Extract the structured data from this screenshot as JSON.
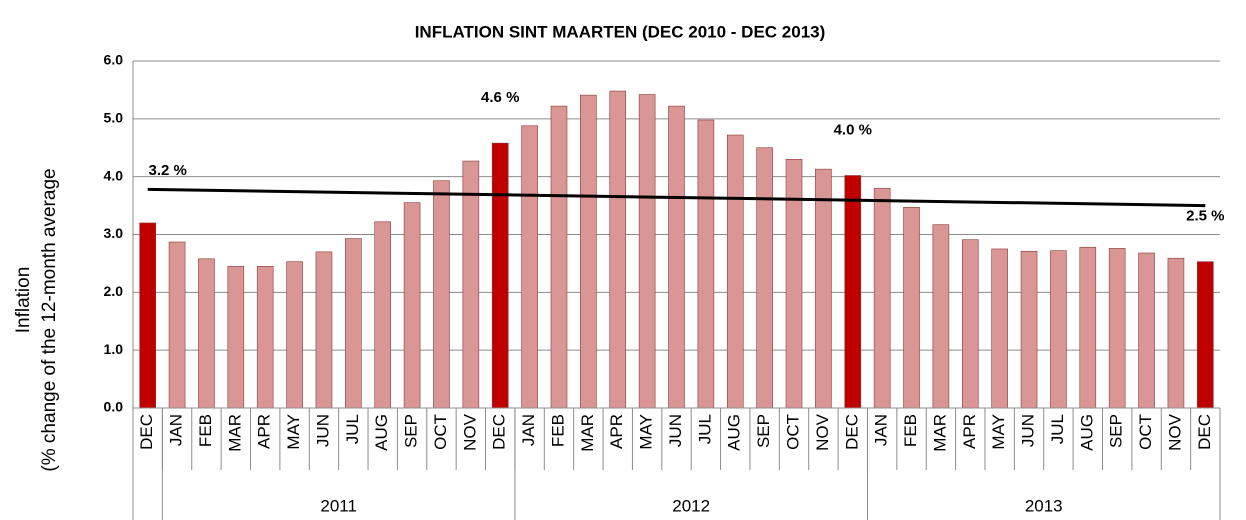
{
  "chart_data": {
    "type": "bar",
    "title": "INFLATION SINT MAARTEN (DEC 2010 - DEC 2013)",
    "ylabel": [
      "Inflation",
      "(% change of the 12-month average"
    ],
    "categories": [
      "DEC",
      "JAN",
      "FEB",
      "MAR",
      "APR",
      "MAY",
      "JUN",
      "JUL",
      "AUG",
      "SEP",
      "OCT",
      "NOV",
      "DEC",
      "JAN",
      "FEB",
      "MAR",
      "APR",
      "MAY",
      "JUN",
      "JUL",
      "AUG",
      "SEP",
      "OCT",
      "NOV",
      "DEC",
      "JAN",
      "FEB",
      "MAR",
      "APR",
      "MAY",
      "JUN",
      "JUL",
      "AUG",
      "SEP",
      "OCT",
      "NOV",
      "DEC"
    ],
    "groups": [
      {
        "label": null,
        "size": 1
      },
      {
        "label": "2011",
        "size": 12
      },
      {
        "label": "2012",
        "size": 12
      },
      {
        "label": "2013",
        "size": 12
      }
    ],
    "values": [
      3.2,
      2.87,
      2.58,
      2.45,
      2.45,
      2.53,
      2.7,
      2.93,
      3.22,
      3.55,
      3.93,
      4.27,
      4.58,
      4.88,
      5.22,
      5.41,
      5.48,
      5.42,
      5.22,
      4.98,
      4.72,
      4.5,
      4.3,
      4.13,
      4.02,
      3.8,
      3.47,
      3.17,
      2.91,
      2.75,
      2.71,
      2.72,
      2.78,
      2.76,
      2.68,
      2.59,
      2.53
    ],
    "value_labels": [
      "3.2 %",
      null,
      null,
      null,
      null,
      null,
      null,
      null,
      null,
      null,
      null,
      null,
      "4.6 %",
      null,
      null,
      null,
      null,
      null,
      null,
      null,
      null,
      null,
      null,
      null,
      "4.0 %",
      null,
      null,
      null,
      null,
      null,
      null,
      null,
      null,
      null,
      null,
      null,
      "2.5 %"
    ],
    "colors": [
      "#c00000",
      "#d99694",
      "#d99694",
      "#d99694",
      "#d99694",
      "#d99694",
      "#d99694",
      "#d99694",
      "#d99694",
      "#d99694",
      "#d99694",
      "#d99694",
      "#c00000",
      "#d99694",
      "#d99694",
      "#d99694",
      "#d99694",
      "#d99694",
      "#d99694",
      "#d99694",
      "#d99694",
      "#d99694",
      "#d99694",
      "#d99694",
      "#c00000",
      "#d99694",
      "#d99694",
      "#d99694",
      "#d99694",
      "#d99694",
      "#d99694",
      "#d99694",
      "#d99694",
      "#d99694",
      "#d99694",
      "#d99694",
      "#c00000"
    ],
    "trend": [
      3.78,
      3.5
    ],
    "trend_color": "#000000",
    "ylim": [
      0,
      6
    ],
    "yticks": [
      {
        "value": 0,
        "label": "0.0"
      },
      {
        "value": 1,
        "label": "1.0"
      },
      {
        "value": 2,
        "label": "2.0"
      },
      {
        "value": 3,
        "label": "3.0"
      },
      {
        "value": 4,
        "label": "4.0"
      },
      {
        "value": 5,
        "label": "5.0"
      },
      {
        "value": 6,
        "label": "6.0"
      }
    ],
    "grid": true
  }
}
